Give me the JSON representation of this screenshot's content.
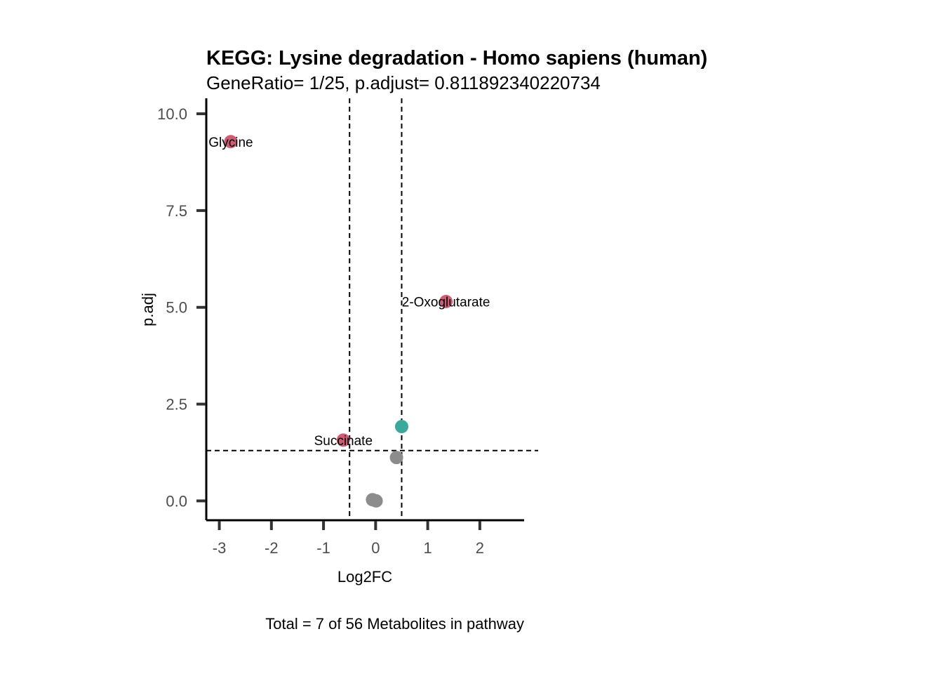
{
  "title": "KEGG: Lysine degradation - Homo sapiens (human)",
  "subtitle": "GeneRatio= 1/25, p.adjust= 0.811892340220734",
  "caption": "Total = 7 of 56 Metabolites in pathway",
  "chart_data": {
    "type": "scatter",
    "xlabel": "Log2FC",
    "ylabel": "p.adj",
    "xlim": [
      -3.25,
      2.85
    ],
    "ylim": [
      -0.5,
      10.4
    ],
    "x_ticks": [
      -3,
      -2,
      -1,
      0,
      1,
      2
    ],
    "x_tick_labels": [
      "-3",
      "-2",
      "-1",
      "0",
      "1",
      "2"
    ],
    "y_ticks": [
      0,
      2.5,
      5,
      7.5,
      10
    ],
    "y_tick_labels": [
      "0.0",
      "2.5",
      "5.0",
      "7.5",
      "10.0"
    ],
    "grid": false,
    "reference_lines": {
      "vertical": [
        -0.5,
        0.5
      ],
      "horizontal": [
        1.3
      ]
    },
    "colors": {
      "labelled": "#cc5d74",
      "significant": "#3aa99b",
      "not_significant": "#8c8c8c"
    },
    "points": [
      {
        "label": "Glycine",
        "x": -2.78,
        "y": 9.28,
        "group": "labelled"
      },
      {
        "label": "2-Oxoglutarate",
        "x": 1.35,
        "y": 5.15,
        "group": "labelled"
      },
      {
        "label": "Succinate",
        "x": -0.62,
        "y": 1.57,
        "group": "labelled"
      },
      {
        "label": "",
        "x": 0.5,
        "y": 1.92,
        "group": "significant"
      },
      {
        "label": "",
        "x": 0.4,
        "y": 1.12,
        "group": "not_significant"
      },
      {
        "label": "",
        "x": -0.06,
        "y": 0.03,
        "group": "not_significant"
      },
      {
        "label": "",
        "x": 0.01,
        "y": 0.0,
        "group": "not_significant"
      }
    ]
  }
}
